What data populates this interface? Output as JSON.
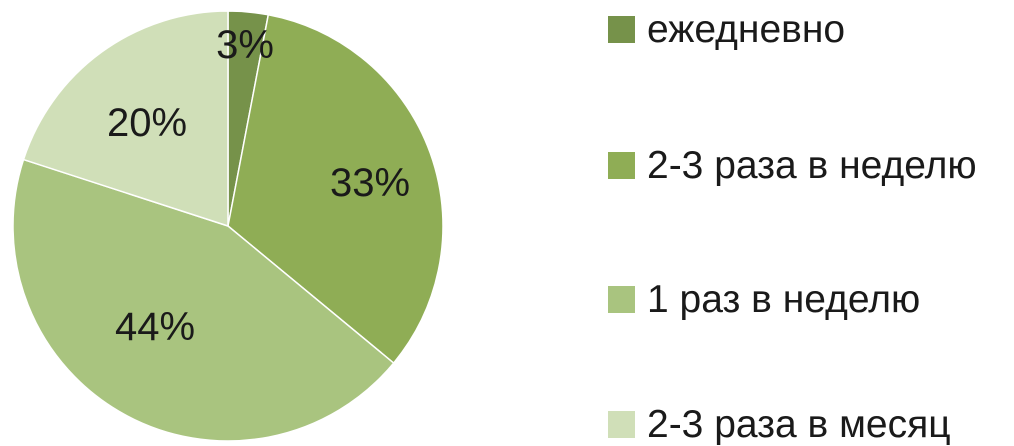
{
  "chart_data": {
    "type": "pie",
    "title": "",
    "categories": [
      "ежедневно",
      "2-3 раза в неделю",
      "1 раз в неделю",
      "2-3 раза в месяц"
    ],
    "values": [
      3,
      33,
      44,
      20
    ],
    "data_labels": [
      "3%",
      "33%",
      "44%",
      "20%"
    ],
    "colors": [
      "#76924a",
      "#8fad55",
      "#a9c47f",
      "#d0dfb8"
    ],
    "start_angle_deg": 0,
    "direction": "clockwise",
    "legend_position": "right"
  }
}
